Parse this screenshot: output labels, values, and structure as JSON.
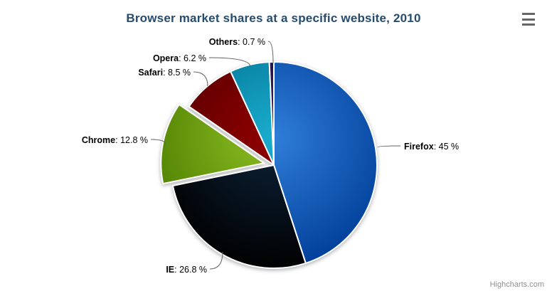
{
  "chart_data": {
    "type": "pie",
    "title": "Browser market shares at a specific website, 2010",
    "title_color": "#274b6d",
    "background_color": "#ffffff",
    "legend_position": "none",
    "label_format": "<name>: <percent> %",
    "slices": [
      {
        "name": "Firefox",
        "value": 45,
        "percent_label": "45 %",
        "color": "#2f7ed8",
        "sliced": false
      },
      {
        "name": "IE",
        "value": 26.8,
        "percent_label": "26.8 %",
        "color": "#0d233a",
        "sliced": false
      },
      {
        "name": "Chrome",
        "value": 12.8,
        "percent_label": "12.8 %",
        "color": "#8bbc21",
        "sliced": true
      },
      {
        "name": "Safari",
        "value": 8.5,
        "percent_label": "8.5 %",
        "color": "#910000",
        "sliced": false
      },
      {
        "name": "Opera",
        "value": 6.2,
        "percent_label": "6.2 %",
        "color": "#1aadce",
        "sliced": false
      },
      {
        "name": "Others",
        "value": 0.7,
        "percent_label": "0.7 %",
        "color": "#492970",
        "sliced": false
      }
    ]
  },
  "credits": {
    "label": "Highcharts.com"
  },
  "icons": {
    "export_menu": "hamburger-icon"
  }
}
